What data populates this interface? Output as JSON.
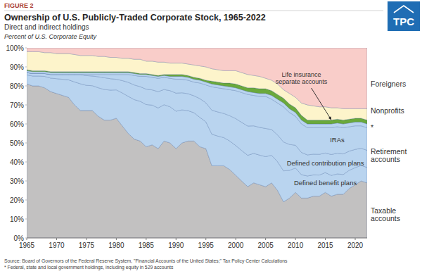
{
  "chart_data": {
    "type": "area",
    "stacked": true,
    "grid": false,
    "figure_label": "FIGURE 2",
    "logo": "TPC",
    "title": "Ownership of U.S. Publicly-Traded Corporate Stock, 1965-2022",
    "subtitle": "Direct and indirect holdings",
    "ylabel": "Percent of U.S. Corporate Equity",
    "source": "Source: Board of Governors of the Federal Reserve System, \"Financial Accounts of the United States;\" Tax Policy Center Calculations",
    "footnote": "* Federal, state and local government holdings, including equity in 529 accounts",
    "annotations": [
      {
        "text": "Retirement accounts"
      }
    ],
    "x": [
      1965,
      1966,
      1967,
      1968,
      1969,
      1970,
      1971,
      1972,
      1973,
      1974,
      1975,
      1976,
      1977,
      1978,
      1979,
      1980,
      1981,
      1982,
      1983,
      1984,
      1985,
      1986,
      1987,
      1988,
      1989,
      1990,
      1991,
      1992,
      1993,
      1994,
      1995,
      1996,
      1997,
      1998,
      1999,
      2000,
      2001,
      2002,
      2003,
      2004,
      2005,
      2006,
      2007,
      2008,
      2009,
      2010,
      2011,
      2012,
      2013,
      2014,
      2015,
      2016,
      2017,
      2018,
      2019,
      2020,
      2021,
      2022
    ],
    "xlim": [
      1965,
      2022
    ],
    "xticks": [
      1965,
      1970,
      1975,
      1980,
      1985,
      1990,
      1995,
      2000,
      2005,
      2010,
      2015,
      2020
    ],
    "ylim": [
      0,
      100
    ],
    "yticks": [
      {
        "value": 0,
        "label": "0%"
      },
      {
        "value": 10,
        "label": "10%"
      },
      {
        "value": 20,
        "label": "20%"
      },
      {
        "value": 30,
        "label": "30%"
      },
      {
        "value": 40,
        "label": "40%"
      },
      {
        "value": 50,
        "label": "50%"
      },
      {
        "value": 60,
        "label": "60%"
      },
      {
        "value": 70,
        "label": "70%"
      },
      {
        "value": 80,
        "label": "80%"
      },
      {
        "value": 90,
        "label": "90%"
      },
      {
        "value": 100,
        "label": "100%"
      }
    ],
    "series": [
      {
        "name": "Taxable accounts",
        "color": "#c2c1c1",
        "values": [
          81,
          80,
          80,
          79,
          77,
          76,
          75,
          74,
          70,
          67,
          67,
          67,
          64,
          62,
          62,
          63,
          59,
          55,
          52,
          51,
          48,
          49,
          47,
          51,
          50,
          47,
          50,
          51,
          51,
          48,
          47,
          38,
          38,
          38,
          36,
          33,
          30,
          27,
          29,
          28,
          27,
          29,
          25,
          19,
          21,
          24,
          21,
          21,
          22,
          22,
          24,
          22,
          23,
          23,
          26,
          28,
          30,
          29
        ]
      },
      {
        "name": "Defined benefit plans",
        "color": "#b9d4ef",
        "values": [
          4.8,
          5.2,
          5.2,
          6.0,
          7.1,
          7.8,
          8.5,
          9.2,
          12.1,
          14.1,
          13.3,
          13.1,
          15.0,
          16.1,
          15.8,
          14.9,
          17.3,
          19.5,
          20.8,
          20.9,
          22.2,
          20.9,
          21.4,
          19.1,
          19.0,
          19.7,
          17.4,
          16.0,
          14.9,
          15.4,
          14.1,
          16.6,
          15.6,
          14.8,
          15.0,
          15.6,
          16.0,
          16.5,
          15.5,
          15.6,
          15.8,
          14.5,
          15.1,
          16.3,
          14.6,
          12.8,
          12.3,
          11.6,
          11.2,
          11.1,
          10.4,
          10.9,
          10.7,
          10.4,
          9.6,
          9.0,
          8.2,
          8.1
        ]
      },
      {
        "name": "Defined contribution plans",
        "color": "#b9d4ef",
        "values": [
          1.2,
          1.3,
          1.3,
          1.5,
          1.9,
          2.2,
          2.5,
          2.8,
          3.9,
          4.9,
          5.1,
          5.1,
          5.8,
          6.2,
          6.0,
          5.6,
          6.5,
          7.4,
          7.7,
          7.7,
          8.1,
          8.0,
          8.6,
          8.0,
          8.5,
          9.5,
          9.0,
          8.9,
          8.9,
          9.9,
          10.0,
          12.6,
          12.7,
          12.7,
          13.3,
          14.2,
          14.8,
          15.4,
          14.5,
          14.6,
          14.8,
          13.6,
          14.1,
          15.2,
          13.6,
          12.0,
          11.7,
          11.1,
          10.9,
          10.9,
          10.3,
          11.0,
          10.9,
          10.8,
          10.1,
          9.6,
          9.0,
          9.0
        ]
      },
      {
        "name": "IRAs",
        "color": "#b9d4ef",
        "values": [
          0,
          0,
          0,
          0,
          0,
          0,
          0,
          0,
          0,
          0,
          0.6,
          0.8,
          1.2,
          1.7,
          2.2,
          2.5,
          3.2,
          4.1,
          5.0,
          5.4,
          6.7,
          6.6,
          7.0,
          6.4,
          6.5,
          7.3,
          7.1,
          7.1,
          7.2,
          8.2,
          9.4,
          12.3,
          12.7,
          13.0,
          13.7,
          14.7,
          15.7,
          16.6,
          16.0,
          16.3,
          16.9,
          15.9,
          16.8,
          18.5,
          16.8,
          15.2,
          15.0,
          14.3,
          13.9,
          14.0,
          13.3,
          14.1,
          13.9,
          13.8,
          12.8,
          12.4,
          11.8,
          11.9
        ]
      },
      {
        "name": "*",
        "color": "#b9d4ef",
        "values": [
          1,
          1,
          1,
          1,
          1,
          1,
          1,
          1,
          1,
          1,
          1,
          1,
          1,
          1,
          1,
          1,
          1,
          1,
          1,
          1,
          1,
          1,
          1,
          1,
          1,
          1.5,
          1.5,
          1.5,
          1.5,
          1.5,
          1.5,
          1.5,
          1.5,
          1.5,
          1.5,
          1.5,
          1.5,
          1.5,
          1.5,
          1.5,
          1.5,
          2,
          2,
          2,
          2,
          2,
          2,
          2,
          2,
          2,
          2,
          2,
          2,
          2,
          2,
          2,
          2,
          2
        ]
      },
      {
        "name": "Life insurance separate accounts",
        "color": "#6aa93b",
        "values": [
          0.5,
          0.5,
          0.5,
          0.5,
          0.5,
          0.5,
          0.5,
          0.5,
          0.5,
          0.5,
          0.5,
          0.5,
          0.5,
          0.5,
          0.5,
          0.5,
          0.5,
          0.5,
          0.5,
          0.5,
          0.5,
          0.5,
          0.5,
          0.5,
          1,
          1,
          1,
          1,
          1,
          1,
          1,
          1.5,
          1.5,
          1.5,
          2,
          2,
          2,
          2,
          2.5,
          2.5,
          2.5,
          2.5,
          2.5,
          2.5,
          2.5,
          2.5,
          2.5,
          2,
          2,
          2,
          2,
          2,
          2,
          2,
          2,
          2,
          2,
          2
        ]
      },
      {
        "name": "Nonprofits",
        "color": "#fdf4cb",
        "values": [
          9.5,
          10,
          10,
          9.5,
          10,
          9.5,
          9.5,
          9.5,
          9,
          8.5,
          8.5,
          8.5,
          8,
          8,
          7.5,
          7.5,
          7,
          7,
          7,
          7.5,
          6.5,
          7,
          7,
          6.5,
          6,
          6,
          6,
          6,
          6.5,
          6.5,
          7,
          6.5,
          6.5,
          6.5,
          6.5,
          7,
          7,
          7,
          6.5,
          6.5,
          5.5,
          5.5,
          5.5,
          4.5,
          5.5,
          5.5,
          6.5,
          8,
          7.5,
          7,
          7,
          6.5,
          6,
          6,
          5.5,
          5,
          5,
          6
        ]
      },
      {
        "name": "Foreigners",
        "color": "#f9cdc9",
        "values": [
          2,
          2,
          2,
          2.5,
          2.5,
          3,
          3,
          3,
          3.5,
          4,
          4,
          4,
          4.5,
          4.5,
          5,
          5,
          5.5,
          5.5,
          6,
          6,
          7,
          7,
          7.5,
          7.5,
          8,
          8,
          8,
          8.5,
          9,
          9.5,
          10,
          11,
          11.5,
          12,
          12,
          12,
          13,
          14,
          14.5,
          15,
          16,
          17,
          19,
          22,
          24,
          26,
          29,
          30,
          30.5,
          31,
          31,
          31.5,
          31.5,
          32,
          32,
          32,
          32,
          32
        ]
      }
    ]
  }
}
